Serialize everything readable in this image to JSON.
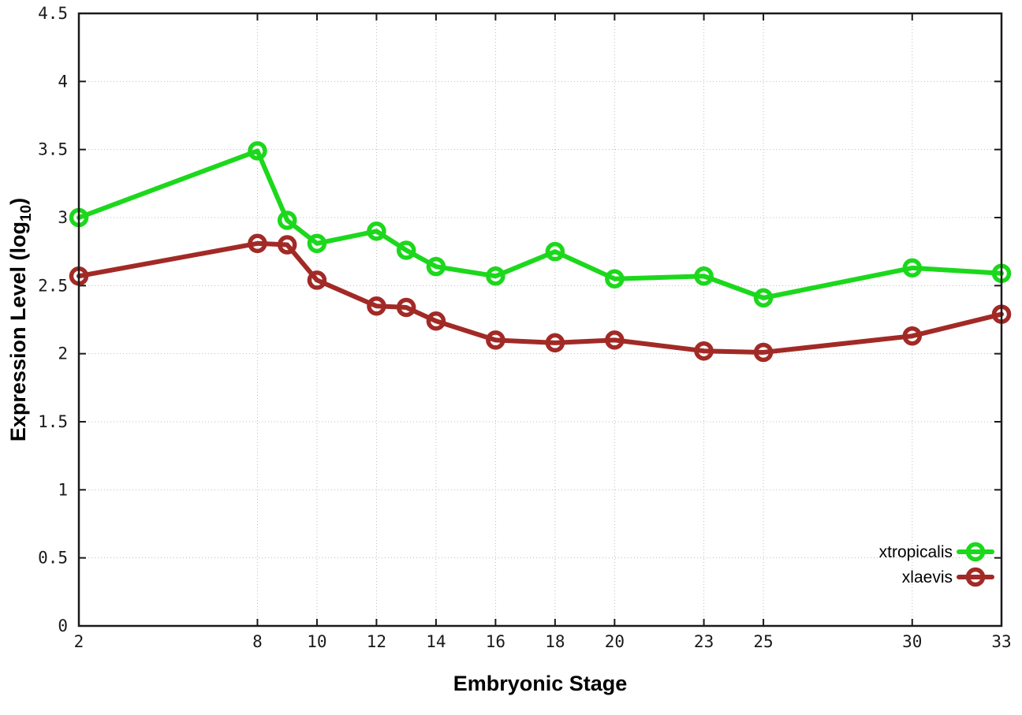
{
  "chart_data": {
    "type": "line",
    "title": "",
    "xlabel": "Embryonic Stage",
    "ylabel": "Expression Level (log10)",
    "ylabel_parts": {
      "main": "Expression Level (log",
      "sub": "10",
      "end": ")"
    },
    "x": [
      2,
      8,
      9,
      10,
      12,
      13,
      14,
      16,
      18,
      20,
      23,
      25,
      30,
      33
    ],
    "series": [
      {
        "name": "xtropicalis",
        "color": "#1cd81c",
        "values": [
          3.0,
          3.49,
          2.98,
          2.81,
          2.9,
          2.76,
          2.64,
          2.57,
          2.75,
          2.55,
          2.57,
          2.41,
          2.63,
          2.59
        ]
      },
      {
        "name": "xlaevis",
        "color": "#a22a26",
        "values": [
          2.57,
          2.81,
          2.8,
          2.54,
          2.35,
          2.34,
          2.24,
          2.1,
          2.08,
          2.1,
          2.02,
          2.01,
          2.13,
          2.29
        ]
      }
    ],
    "xticks": [
      2,
      8,
      10,
      12,
      14,
      16,
      18,
      20,
      23,
      25,
      30,
      33
    ],
    "yticks": [
      "0",
      "0.5",
      "1",
      "1.5",
      "2",
      "2.5",
      "3",
      "3.5",
      "4",
      "4.5"
    ],
    "xlim": [
      2,
      33
    ],
    "ylim": [
      0,
      4.5
    ],
    "grid": true,
    "legend_position": "bottom-right",
    "colors": {
      "border": "#1a1a1a",
      "grid": "#bcbcbc",
      "background": "#ffffff"
    }
  }
}
